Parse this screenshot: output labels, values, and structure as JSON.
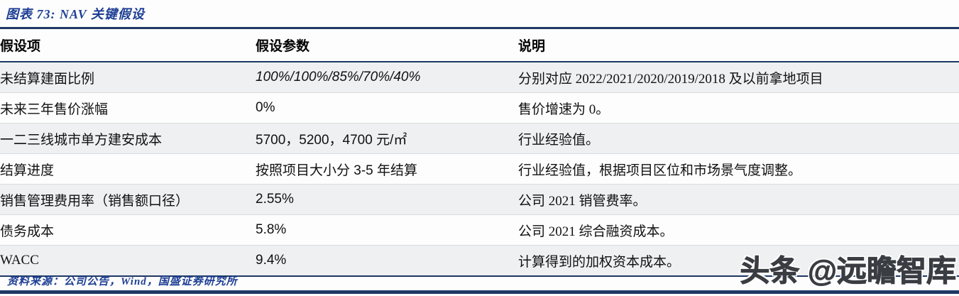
{
  "title": "图表 73:  NAV 关键假设",
  "table": {
    "headers": [
      "假设项",
      "假设参数",
      "说明"
    ],
    "rows": [
      {
        "item": "未结算建面比例",
        "param": "100%/100%/85%/70%/40%",
        "desc": "分别对应 2022/2021/2020/2019/2018 及以前拿地项目"
      },
      {
        "item": "未来三年售价涨幅",
        "param": "0%",
        "desc": "售价增速为 0。"
      },
      {
        "item": "一二三线城市单方建安成本",
        "param": "5700，5200，4700 元/㎡",
        "desc": "行业经验值。"
      },
      {
        "item": "结算进度",
        "param": "按照项目大小分 3-5 年结算",
        "desc": "行业经验值，根据项目区位和市场景气度调整。"
      },
      {
        "item": "销售管理费用率（销售额口径）",
        "param": "2.55%",
        "desc": "公司 2021 销管费率。"
      },
      {
        "item": "债务成本",
        "param": "5.8%",
        "desc": "公司 2021 综合融资成本。"
      },
      {
        "item": "WACC",
        "param": "9.4%",
        "desc": "计算得到的加权资本成本。"
      }
    ]
  },
  "source": "资料来源：公司公告，Wind，国盛证券研究所",
  "watermark": "头条 @远瞻智库",
  "colors": {
    "accent_navy": "#1f3864",
    "title_blue": "#1e3f94",
    "row_alt_gray": "#eef0f1"
  }
}
